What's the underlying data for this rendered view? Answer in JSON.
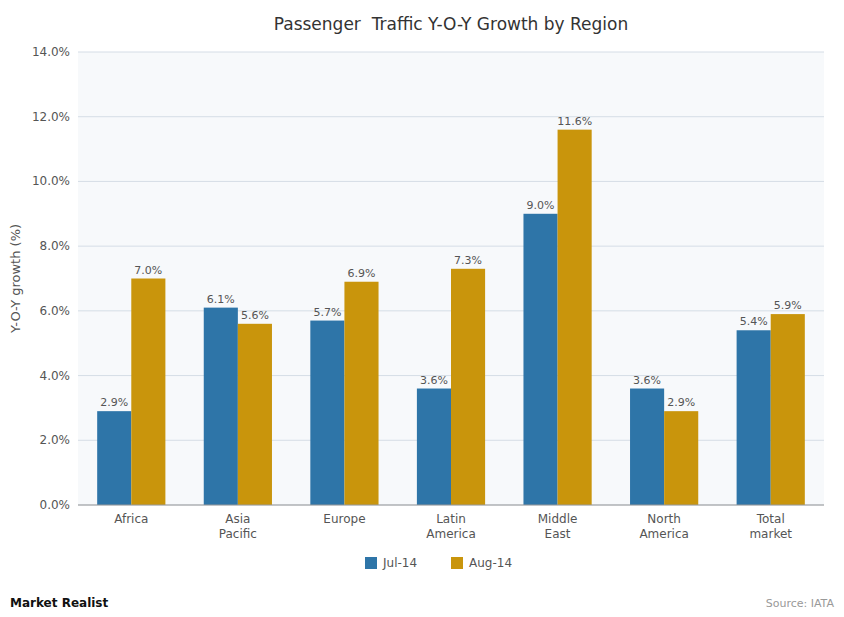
{
  "chart_data": {
    "type": "bar",
    "title": "Passenger  Traffic Y-O-Y Growth by Region",
    "categories": [
      "Africa",
      "Asia\nPacific",
      "Europe",
      "Latin\nAmerica",
      "Middle\nEast",
      "North\nAmerica",
      "Total\nmarket"
    ],
    "series": [
      {
        "name": "Jul-14",
        "color": "#2e75a8",
        "values": [
          2.9,
          6.1,
          5.7,
          3.6,
          9.0,
          3.6,
          5.4
        ],
        "value_labels": [
          "2.9%",
          "6.1%",
          "5.7%",
          "3.6%",
          "9.0%",
          "3.6%",
          "5.4%"
        ]
      },
      {
        "name": "Aug-14",
        "color": "#c9950c",
        "values": [
          7.0,
          5.6,
          6.9,
          7.3,
          11.6,
          2.9,
          5.9
        ],
        "value_labels": [
          "7.0%",
          "5.6%",
          "6.9%",
          "7.3%",
          "11.6%",
          "2.9%",
          "5.9%"
        ]
      }
    ],
    "ylabel": "Y-O-Y growth (%)",
    "ylim": [
      0,
      14
    ],
    "yticks": [
      {
        "value": 0,
        "label": "0.0%"
      },
      {
        "value": 2,
        "label": "2.0%"
      },
      {
        "value": 4,
        "label": "4.0%"
      },
      {
        "value": 6,
        "label": "6.0%"
      },
      {
        "value": 8,
        "label": "8.0%"
      },
      {
        "value": 10,
        "label": "10.0%"
      },
      {
        "value": 12,
        "label": "12.0%"
      },
      {
        "value": 14,
        "label": "14.0%"
      }
    ],
    "grid": true,
    "legend": "bottom",
    "data_labels": true,
    "annotations": [
      "Market Realist",
      "Source: IATA"
    ]
  }
}
